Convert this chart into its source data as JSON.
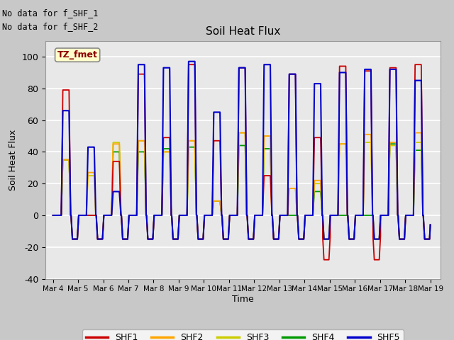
{
  "title": "Soil Heat Flux",
  "ylabel": "Soil Heat Flux",
  "xlabel": "Time",
  "ylim": [
    -40,
    110
  ],
  "no_data_text": [
    "No data for f_SHF_1",
    "No data for f_SHF_2"
  ],
  "tz_label": "TZ_fmet",
  "xtick_labels": [
    "Mar 4",
    "Mar 5",
    "Mar 6",
    "Mar 7",
    "Mar 8",
    "Mar 9",
    "Mar 10",
    "Mar 11",
    "Mar 12",
    "Mar 13",
    "Mar 14",
    "Mar 15",
    "Mar 16",
    "Mar 17",
    "Mar 18",
    "Mar 19"
  ],
  "xtick_positions": [
    0,
    1,
    2,
    3,
    4,
    5,
    6,
    7,
    8,
    9,
    10,
    11,
    12,
    13,
    14,
    15
  ],
  "ytick_labels": [
    "-40",
    "-20",
    "0",
    "20",
    "40",
    "60",
    "80",
    "100"
  ],
  "ytick_positions": [
    -40,
    -20,
    0,
    20,
    40,
    60,
    80,
    100
  ],
  "colors": {
    "SHF1": "#cc0000",
    "SHF2": "#ffa500",
    "SHF3": "#cccc00",
    "SHF4": "#009900",
    "SHF5": "#0000cc"
  },
  "background_color": "#c8c8c8",
  "plot_bg_color": "#e8e8e8",
  "shf1_peaks": [
    79,
    0,
    34,
    89,
    49,
    95,
    47,
    93,
    25,
    89,
    49,
    94,
    91,
    93,
    95
  ],
  "shf2_peaks": [
    35,
    27,
    45,
    47,
    40,
    47,
    9,
    52,
    50,
    17,
    22,
    45,
    51,
    46,
    52
  ],
  "shf3_peaks": [
    35,
    25,
    46,
    47,
    40,
    47,
    9,
    52,
    50,
    17,
    20,
    45,
    46,
    44,
    46
  ],
  "shf4_peaks": [
    35,
    0,
    40,
    40,
    42,
    43,
    9,
    44,
    42,
    0,
    15,
    0,
    0,
    45,
    41
  ],
  "shf5_peaks": [
    66,
    43,
    15,
    95,
    93,
    97,
    65,
    93,
    95,
    89,
    83,
    90,
    92,
    92,
    85
  ],
  "night_trough": -15,
  "deep_trough_days": [
    10,
    12
  ],
  "deep_trough_val": -28,
  "figsize": [
    6.4,
    4.8
  ],
  "dpi": 100
}
